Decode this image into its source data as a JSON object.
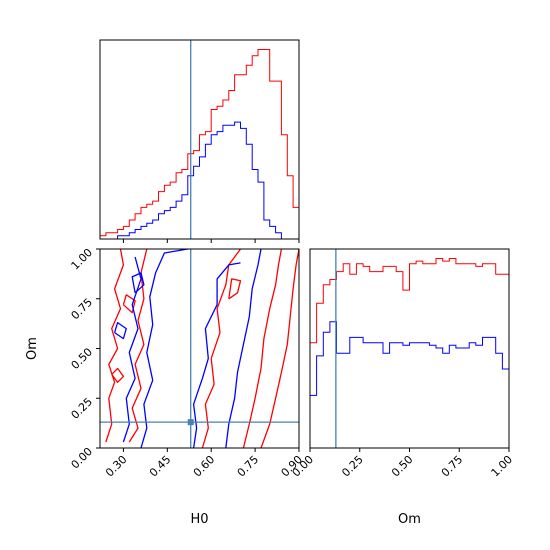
{
  "chart_data": {
    "type": "corner",
    "parameters": [
      "H0",
      "Om"
    ],
    "truth": {
      "H0": 0.53,
      "Om": 0.13
    },
    "series": [
      {
        "color": "#ff0000"
      },
      {
        "color": "#0000ff"
      }
    ],
    "truth_color": "#4682b4",
    "panels": [
      {
        "kind": "histogram",
        "parameter": "H0",
        "xlim": [
          0.22,
          0.9
        ],
        "bin_edges": [
          0.22,
          0.24,
          0.26,
          0.28,
          0.3,
          0.32,
          0.34,
          0.36,
          0.38,
          0.4,
          0.42,
          0.44,
          0.46,
          0.48,
          0.5,
          0.52,
          0.54,
          0.56,
          0.58,
          0.6,
          0.62,
          0.64,
          0.66,
          0.68,
          0.7,
          0.72,
          0.74,
          0.76,
          0.78,
          0.8,
          0.82,
          0.84,
          0.86,
          0.88,
          0.9
        ],
        "counts": [
          [
            1,
            2,
            2,
            3,
            4,
            6,
            8,
            10,
            11,
            12,
            15,
            17,
            18,
            21,
            22,
            27,
            28,
            33,
            34,
            41,
            42,
            44,
            47,
            52,
            52,
            55,
            58,
            60,
            60,
            50,
            50,
            33,
            20,
            10
          ],
          [
            0,
            0,
            0,
            1,
            1,
            2,
            3,
            4,
            5,
            6,
            8,
            9,
            10,
            12,
            14,
            20,
            23,
            26,
            30,
            33,
            34,
            36,
            36,
            37,
            35,
            30,
            22,
            18,
            6,
            4,
            2,
            0,
            0,
            0
          ]
        ]
      },
      {
        "kind": "contour",
        "parameters": [
          "H0",
          "Om"
        ],
        "xlim": [
          0.22,
          0.9
        ],
        "ylim": [
          0.0,
          1.0
        ],
        "x_ticks": [
          "0.30",
          "0.45",
          "0.60",
          "0.75",
          "0.90"
        ],
        "y_ticks": [
          "0.00",
          "0.25",
          "0.50",
          "0.75",
          "1.00"
        ],
        "xlabel": "H0",
        "ylabel": "Om",
        "contours": [
          {
            "series": 0,
            "points": [
              [
                0.24,
                0.03
              ],
              [
                0.26,
                0.12
              ],
              [
                0.25,
                0.25
              ],
              [
                0.27,
                0.33
              ],
              [
                0.25,
                0.42
              ],
              [
                0.28,
                0.5
              ],
              [
                0.26,
                0.6
              ],
              [
                0.29,
                0.7
              ],
              [
                0.27,
                0.8
              ],
              [
                0.3,
                0.92
              ],
              [
                0.29,
                1.0
              ]
            ]
          },
          {
            "series": 0,
            "points": [
              [
                0.32,
                0.03
              ],
              [
                0.35,
                0.1
              ],
              [
                0.33,
                0.2
              ],
              [
                0.36,
                0.3
              ],
              [
                0.34,
                0.42
              ],
              [
                0.37,
                0.52
              ],
              [
                0.35,
                0.64
              ],
              [
                0.37,
                0.75
              ],
              [
                0.36,
                0.88
              ],
              [
                0.38,
                1.0
              ]
            ]
          },
          {
            "series": 0,
            "points": [
              [
                0.57,
                0.0
              ],
              [
                0.59,
                0.1
              ],
              [
                0.58,
                0.22
              ],
              [
                0.61,
                0.32
              ],
              [
                0.6,
                0.45
              ],
              [
                0.63,
                0.58
              ],
              [
                0.62,
                0.7
              ],
              [
                0.65,
                0.82
              ],
              [
                0.66,
                0.92
              ],
              [
                0.7,
                1.0
              ]
            ]
          },
          {
            "series": 0,
            "points": [
              [
                0.71,
                0.0
              ],
              [
                0.73,
                0.12
              ],
              [
                0.75,
                0.25
              ],
              [
                0.77,
                0.4
              ],
              [
                0.78,
                0.55
              ],
              [
                0.8,
                0.7
              ],
              [
                0.82,
                0.82
              ],
              [
                0.83,
                0.92
              ],
              [
                0.84,
                1.0
              ]
            ]
          },
          {
            "series": 0,
            "points": [
              [
                0.77,
                0.0
              ],
              [
                0.8,
                0.12
              ],
              [
                0.82,
                0.25
              ],
              [
                0.84,
                0.38
              ],
              [
                0.86,
                0.52
              ],
              [
                0.87,
                0.66
              ],
              [
                0.88,
                0.8
              ],
              [
                0.89,
                0.92
              ],
              [
                0.9,
                1.0
              ]
            ]
          },
          {
            "series": 0,
            "points": [
              [
                0.26,
                0.37
              ],
              [
                0.28,
                0.33
              ],
              [
                0.3,
                0.36
              ],
              [
                0.28,
                0.4
              ],
              [
                0.26,
                0.37
              ]
            ]
          },
          {
            "series": 0,
            "points": [
              [
                0.3,
                0.72
              ],
              [
                0.33,
                0.68
              ],
              [
                0.34,
                0.74
              ],
              [
                0.31,
                0.77
              ],
              [
                0.3,
                0.72
              ]
            ]
          },
          {
            "series": 0,
            "points": [
              [
                0.66,
                0.75
              ],
              [
                0.69,
                0.78
              ],
              [
                0.7,
                0.84
              ],
              [
                0.67,
                0.85
              ],
              [
                0.66,
                0.75
              ]
            ]
          },
          {
            "series": 1,
            "points": [
              [
                0.3,
                0.03
              ],
              [
                0.32,
                0.12
              ],
              [
                0.31,
                0.25
              ],
              [
                0.34,
                0.35
              ],
              [
                0.32,
                0.48
              ],
              [
                0.35,
                0.6
              ],
              [
                0.33,
                0.72
              ],
              [
                0.36,
                0.85
              ],
              [
                0.34,
                0.96
              ]
            ]
          },
          {
            "series": 1,
            "points": [
              [
                0.36,
                0.0
              ],
              [
                0.38,
                0.1
              ],
              [
                0.37,
                0.22
              ],
              [
                0.4,
                0.34
              ],
              [
                0.38,
                0.48
              ],
              [
                0.4,
                0.62
              ],
              [
                0.39,
                0.76
              ],
              [
                0.41,
                0.88
              ],
              [
                0.44,
                0.98
              ],
              [
                0.52,
                1.0
              ]
            ]
          },
          {
            "series": 1,
            "points": [
              [
                0.54,
                0.0
              ],
              [
                0.55,
                0.1
              ],
              [
                0.54,
                0.22
              ],
              [
                0.57,
                0.35
              ],
              [
                0.59,
                0.45
              ],
              [
                0.58,
                0.6
              ],
              [
                0.62,
                0.72
              ],
              [
                0.62,
                0.85
              ],
              [
                0.66,
                0.92
              ],
              [
                0.7,
                0.93
              ]
            ]
          },
          {
            "series": 1,
            "points": [
              [
                0.65,
                0.0
              ],
              [
                0.66,
                0.12
              ],
              [
                0.68,
                0.25
              ],
              [
                0.69,
                0.38
              ],
              [
                0.71,
                0.52
              ],
              [
                0.73,
                0.66
              ],
              [
                0.74,
                0.8
              ],
              [
                0.76,
                0.92
              ],
              [
                0.77,
                1.0
              ]
            ]
          },
          {
            "series": 1,
            "points": [
              [
                0.27,
                0.58
              ],
              [
                0.3,
                0.55
              ],
              [
                0.31,
                0.6
              ],
              [
                0.28,
                0.63
              ],
              [
                0.27,
                0.58
              ]
            ]
          },
          {
            "series": 1,
            "points": [
              [
                0.34,
                0.78
              ],
              [
                0.37,
                0.82
              ],
              [
                0.36,
                0.88
              ],
              [
                0.33,
                0.86
              ],
              [
                0.34,
                0.78
              ]
            ]
          }
        ]
      },
      {
        "kind": "histogram",
        "parameter": "Om",
        "xlim": [
          0.0,
          1.0
        ],
        "x_ticks": [
          "0.00",
          "0.25",
          "0.50",
          "0.75",
          "1.00"
        ],
        "xlabel": "Om",
        "bin_edges": [
          0.0,
          0.033,
          0.067,
          0.1,
          0.133,
          0.167,
          0.2,
          0.233,
          0.267,
          0.3,
          0.333,
          0.367,
          0.4,
          0.433,
          0.467,
          0.5,
          0.533,
          0.567,
          0.6,
          0.633,
          0.667,
          0.7,
          0.733,
          0.767,
          0.8,
          0.833,
          0.867,
          0.9,
          0.933,
          0.967,
          1.0
        ],
        "counts": [
          [
            40,
            55,
            62,
            64,
            67,
            70,
            66,
            70,
            69,
            67,
            67,
            69,
            69,
            67,
            60,
            70,
            71,
            70,
            70,
            72,
            71,
            72,
            70,
            70,
            70,
            69,
            70,
            70,
            66,
            66
          ],
          [
            20,
            35,
            44,
            48,
            36,
            36,
            42,
            42,
            40,
            40,
            40,
            36,
            40,
            40,
            39,
            40,
            40,
            40,
            39,
            38,
            36,
            39,
            38,
            38,
            40,
            39,
            42,
            42,
            36,
            30
          ]
        ]
      }
    ]
  }
}
